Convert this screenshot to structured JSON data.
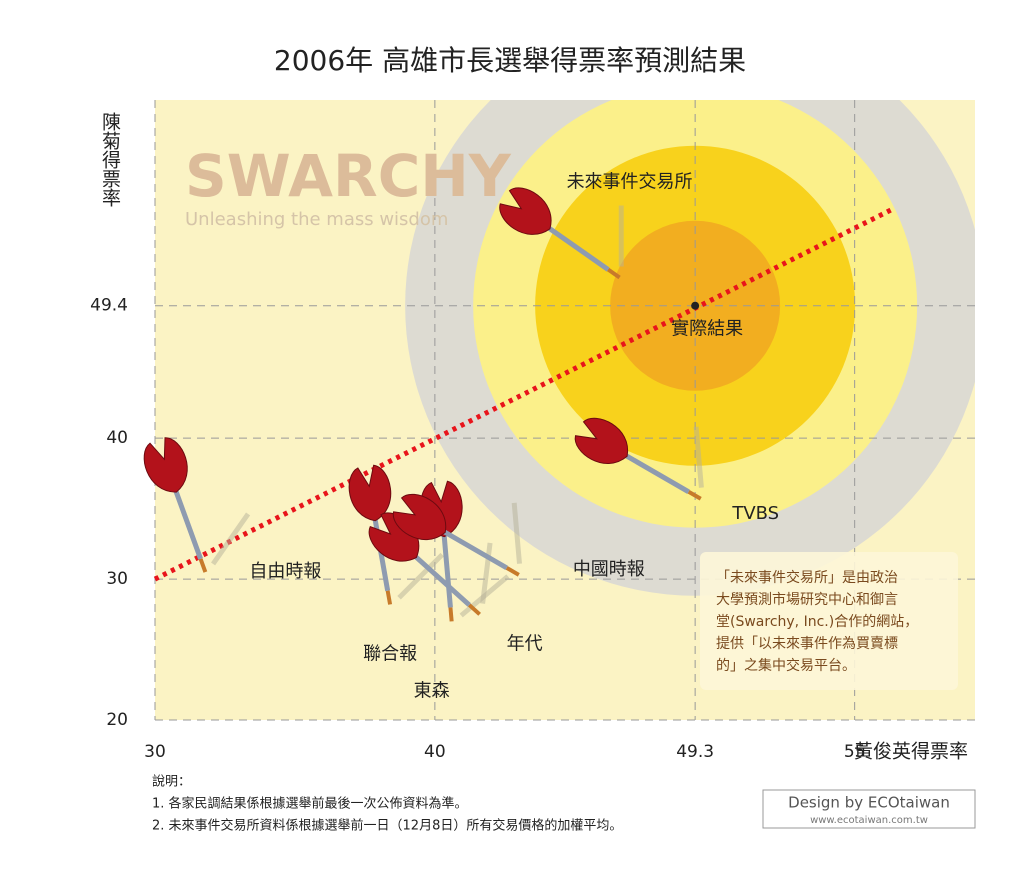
{
  "chart_data": {
    "type": "scatter",
    "title": "2006年 高雄市長選舉得票率預測結果",
    "x_label": "黃俊英得票率",
    "y_label": "陳菊得票率",
    "xlim": [
      30,
      59.3
    ],
    "ylim": [
      20,
      64
    ],
    "xticks": [
      30,
      40,
      49.3,
      55
    ],
    "yticks": [
      20,
      30,
      40,
      49.4
    ],
    "grid": true,
    "color": "#b3121b",
    "points": [
      {
        "name": "自由時報",
        "x": 31.8,
        "y": 30.5
      },
      {
        "name": "聯合報",
        "x": 38.4,
        "y": 28.2
      },
      {
        "name": "東森",
        "x": 40.6,
        "y": 27
      },
      {
        "name": "年代",
        "x": 41.6,
        "y": 27.5
      },
      {
        "name": "中國時報",
        "x": 43,
        "y": 30.3
      },
      {
        "name": "TVBS",
        "x": 49.5,
        "y": 35.7
      },
      {
        "name": "未來事件交易所",
        "x": 46.6,
        "y": 51.4
      }
    ],
    "actual": {
      "name": "實際結果",
      "x": 49.3,
      "y": 49.4
    },
    "trend_line": {
      "color": "#e8141b",
      "x": [
        30,
        56.3
      ],
      "y": [
        30,
        56.2
      ]
    },
    "watermark": {
      "title": "SWARCHY",
      "subtitle": "Unleashing the mass wisdom"
    },
    "info_box": [
      "「未來事件交易所」是由政治",
      "大學預測市場研究中心和御言",
      "堂(Swarchy, Inc.)合作的網站，",
      "提供「以未來事件作為買賣標",
      "的」之集中交易平台。"
    ],
    "notes": [
      "說明：",
      "1. 各家民調結果係根據選舉前最後一次公佈資料為準。",
      "2. 未來事件交易所資料係根據選舉前一日（12月8日）所有交易價格的加權平均。"
    ],
    "credit": {
      "title": "Design by ECOtaiwan",
      "url": "www.ecotaiwan.com.tw"
    }
  }
}
